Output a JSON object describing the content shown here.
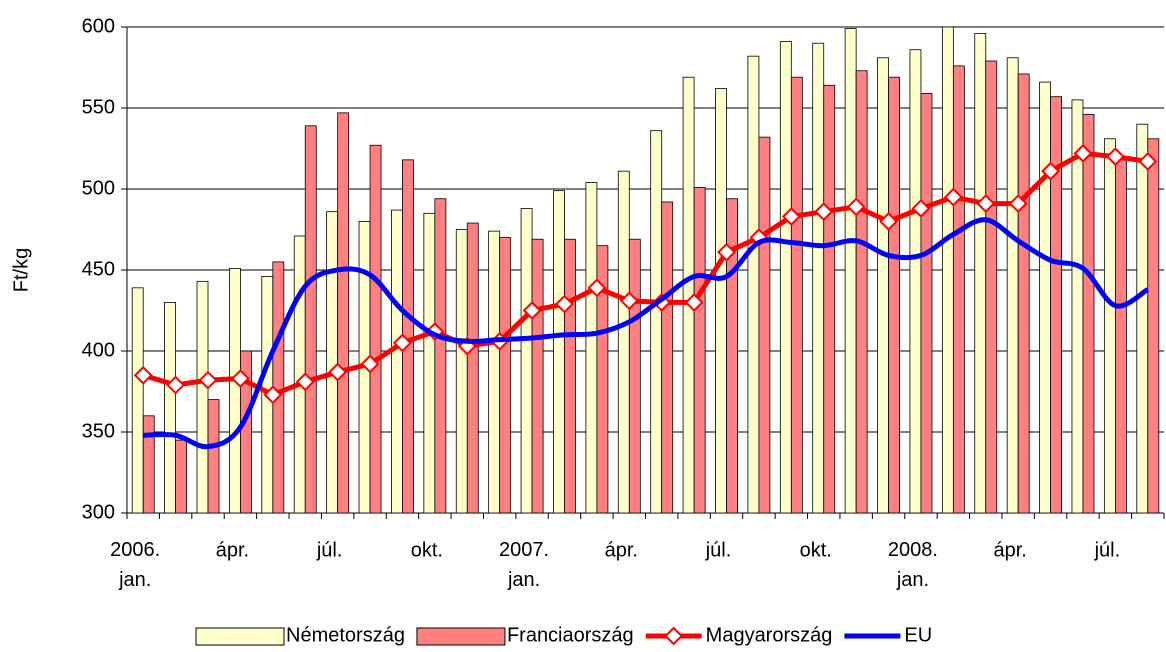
{
  "chart_data": {
    "type": "bar",
    "y_label": "Ft/kg",
    "categories": [
      "2006.\njan.",
      null,
      null,
      "ápr.",
      null,
      null,
      "júl.",
      null,
      null,
      "okt.",
      null,
      null,
      "2007.\njan.",
      null,
      null,
      "ápr.",
      null,
      null,
      "júl.",
      null,
      null,
      "okt.",
      null,
      null,
      "2008.\njan.",
      null,
      null,
      "ápr.",
      null,
      null,
      "júl.",
      null
    ],
    "series": [
      {
        "name": "Németország",
        "type": "bar",
        "color": "#ffffcc",
        "values": [
          439,
          430,
          443,
          451,
          446,
          471,
          486,
          480,
          487,
          485,
          475,
          474,
          488,
          499,
          504,
          511,
          536,
          569,
          562,
          582,
          591,
          590,
          599,
          581,
          586,
          600,
          596,
          581,
          566,
          555,
          531,
          540
        ]
      },
      {
        "name": "Franciaország",
        "type": "bar",
        "color": "#ff8080",
        "values": [
          360,
          345,
          370,
          400,
          455,
          539,
          547,
          527,
          518,
          494,
          479,
          470,
          469,
          469,
          465,
          469,
          492,
          501,
          494,
          532,
          569,
          564,
          573,
          569,
          559,
          576,
          579,
          571,
          557,
          546,
          520,
          531
        ]
      },
      {
        "name": "Magyarország",
        "type": "line",
        "marker": "diamond",
        "color": "#ff0000",
        "values": [
          385,
          379,
          382,
          383,
          373,
          381,
          387,
          392,
          405,
          412,
          403,
          406,
          425,
          429,
          439,
          431,
          430,
          430,
          461,
          470,
          483,
          486,
          489,
          480,
          488,
          495,
          491,
          491,
          511,
          522,
          520,
          517
        ]
      },
      {
        "name": "EU",
        "type": "line",
        "color": "#0000ff",
        "values": [
          348,
          348,
          341,
          353,
          400,
          440,
          450,
          447,
          425,
          410,
          406,
          407,
          408,
          410,
          411,
          418,
          432,
          446,
          446,
          467,
          467,
          465,
          468,
          459,
          459,
          472,
          481,
          468,
          456,
          451,
          428,
          438
        ]
      }
    ],
    "ylim": [
      300,
      600
    ],
    "yticks": [
      300,
      350,
      400,
      450,
      500,
      550,
      600
    ],
    "grid": true,
    "legend": "bottom"
  }
}
